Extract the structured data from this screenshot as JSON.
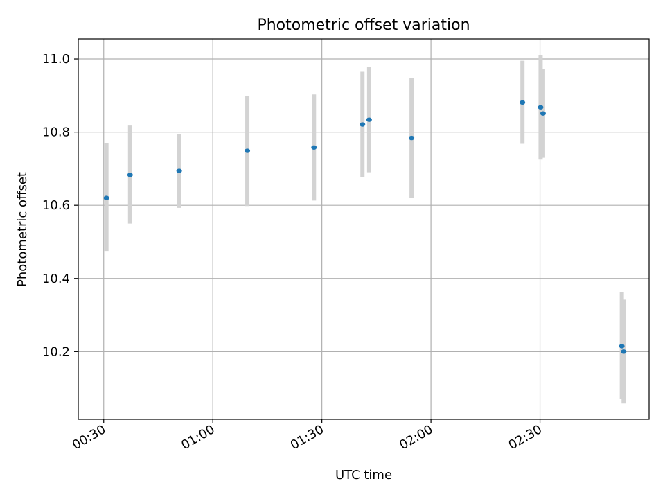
{
  "chart_data": {
    "type": "scatter",
    "title": "Photometric offset variation",
    "xlabel": "UTC time",
    "ylabel": "Photometric offset",
    "xlim": [
      "00:23",
      "03:00"
    ],
    "ylim": [
      10.015,
      11.055
    ],
    "x_ticks": [
      "00:30",
      "01:00",
      "01:30",
      "02:00",
      "02:30"
    ],
    "y_ticks": [
      10.2,
      10.4,
      10.6,
      10.8,
      11.0
    ],
    "y_tick_labels": [
      "10.2",
      "10.4",
      "10.6",
      "10.8",
      "11.0"
    ],
    "grid": true,
    "point_color": "#1f77b4",
    "errorbar_color": "#d3d3d3",
    "points": [
      {
        "x": "00:30:45",
        "y": 10.62,
        "ylow": 10.475,
        "yhigh": 10.77
      },
      {
        "x": "00:37:15",
        "y": 10.683,
        "ylow": 10.55,
        "yhigh": 10.818
      },
      {
        "x": "00:50:45",
        "y": 10.694,
        "ylow": 10.593,
        "yhigh": 10.795
      },
      {
        "x": "01:09:30",
        "y": 10.749,
        "ylow": 10.598,
        "yhigh": 10.898
      },
      {
        "x": "01:27:50",
        "y": 10.758,
        "ylow": 10.613,
        "yhigh": 10.903
      },
      {
        "x": "01:41:10",
        "y": 10.821,
        "ylow": 10.677,
        "yhigh": 10.965
      },
      {
        "x": "01:43:00",
        "y": 10.834,
        "ylow": 10.69,
        "yhigh": 10.978
      },
      {
        "x": "01:54:40",
        "y": 10.784,
        "ylow": 10.62,
        "yhigh": 10.948
      },
      {
        "x": "02:25:10",
        "y": 10.881,
        "ylow": 10.768,
        "yhigh": 10.995
      },
      {
        "x": "02:30:10",
        "y": 10.868,
        "ylow": 10.725,
        "yhigh": 11.01
      },
      {
        "x": "02:30:50",
        "y": 10.851,
        "ylow": 10.73,
        "yhigh": 10.972
      },
      {
        "x": "02:52:30",
        "y": 10.215,
        "ylow": 10.07,
        "yhigh": 10.362
      },
      {
        "x": "02:53:00",
        "y": 10.2,
        "ylow": 10.058,
        "yhigh": 10.342
      }
    ]
  }
}
